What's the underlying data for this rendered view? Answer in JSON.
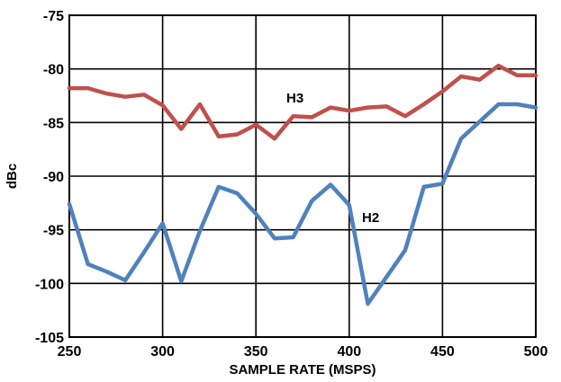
{
  "chart_data": {
    "type": "line",
    "title": "",
    "xlabel": "SAMPLE RATE (MSPS)",
    "ylabel": "dBc",
    "xlim": [
      250,
      500
    ],
    "ylim": [
      -105,
      -75
    ],
    "x_ticks": [
      250,
      300,
      350,
      400,
      450,
      500
    ],
    "y_ticks": [
      -75,
      -80,
      -85,
      -90,
      -95,
      -100,
      -105
    ],
    "grid": true,
    "legend": "none",
    "series": [
      {
        "name": "H3",
        "color": "#c0504d",
        "x": [
          250,
          260,
          270,
          280,
          290,
          300,
          310,
          320,
          330,
          340,
          350,
          360,
          370,
          380,
          390,
          400,
          410,
          420,
          430,
          440,
          450,
          460,
          470,
          480,
          490,
          500
        ],
        "values": [
          -81.8,
          -81.8,
          -82.3,
          -82.6,
          -82.4,
          -83.4,
          -85.6,
          -83.3,
          -86.3,
          -86.1,
          -85.2,
          -86.5,
          -84.4,
          -84.5,
          -83.6,
          -83.9,
          -83.6,
          -83.5,
          -84.4,
          -83.3,
          -82.1,
          -80.7,
          -81.0,
          -79.7,
          -80.6,
          -80.6
        ]
      },
      {
        "name": "H2",
        "color": "#4f81bd",
        "x": [
          250,
          260,
          270,
          280,
          290,
          300,
          310,
          320,
          330,
          340,
          350,
          360,
          370,
          380,
          390,
          400,
          410,
          420,
          430,
          440,
          450,
          460,
          470,
          480,
          490,
          500
        ],
        "values": [
          -92.6,
          -98.2,
          -98.9,
          -99.7,
          -97.1,
          -94.4,
          -99.8,
          -95.1,
          -91.0,
          -91.6,
          -93.5,
          -95.8,
          -95.7,
          -92.3,
          -90.8,
          -92.7,
          -101.9,
          -99.4,
          -96.9,
          -91.0,
          -90.7,
          -86.5,
          -84.9,
          -83.3,
          -83.3,
          -83.6
        ]
      }
    ]
  }
}
